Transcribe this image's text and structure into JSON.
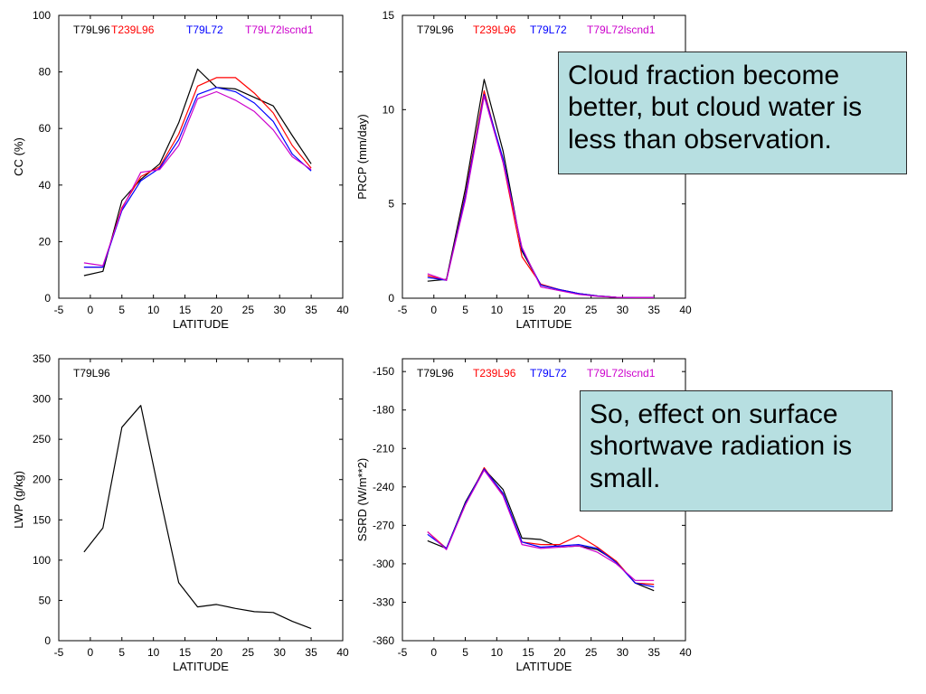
{
  "colors": {
    "T79L96": "#000000",
    "T239L96": "#ff0000",
    "T79L72": "#0000ff",
    "T79L72lscnd1": "#cc00cc",
    "note_bg": "#b7dfe1"
  },
  "notes": {
    "cloud": "Cloud fraction become better, but cloud water is less than observation.",
    "ssrd": "So, effect on surface shortwave radiation is small."
  },
  "chart_data": [
    {
      "type": "line",
      "xlabel": "LATITUDE",
      "ylabel": "CC (%)",
      "xlim": [
        -5,
        40
      ],
      "xticks": [
        -5,
        0,
        5,
        10,
        15,
        20,
        25,
        30,
        35,
        40
      ],
      "ylim": [
        0,
        100
      ],
      "yticks": [
        0,
        20,
        40,
        60,
        80,
        100
      ],
      "legend": [
        "T79L96",
        "T239L96",
        "T79L72",
        "T79L72lscnd1"
      ],
      "x": [
        -1,
        2,
        5,
        8,
        11,
        14,
        17,
        20,
        23,
        26,
        29,
        32,
        35
      ],
      "series": [
        {
          "name": "T79L96",
          "values": [
            8,
            9.5,
            34.5,
            42,
            47.5,
            62,
            81,
            74.5,
            74,
            71,
            68,
            57.5,
            47.5
          ]
        },
        {
          "name": "T239L96",
          "values": [
            11,
            11,
            32,
            43,
            46.5,
            58,
            75,
            78,
            78,
            72.5,
            65.5,
            54,
            46
          ]
        },
        {
          "name": "T79L72",
          "values": [
            11,
            11,
            31,
            41.5,
            46,
            56,
            72,
            74.5,
            73,
            69,
            62.5,
            51,
            45
          ]
        },
        {
          "name": "T79L72lscnd1",
          "values": [
            12.5,
            11.5,
            31.5,
            44.5,
            45.5,
            54,
            70.5,
            73,
            70,
            66,
            59.5,
            50,
            45.5
          ]
        }
      ]
    },
    {
      "type": "line",
      "xlabel": "LATITUDE",
      "ylabel": "PRCP (mm/day)",
      "xlim": [
        -5,
        40
      ],
      "xticks": [
        -5,
        0,
        5,
        10,
        15,
        20,
        25,
        30,
        35,
        40
      ],
      "ylim": [
        0,
        15
      ],
      "yticks": [
        0,
        5,
        10,
        15
      ],
      "legend": [
        "T79L96",
        "T239L96",
        "T79L72",
        "T79L72lscnd1"
      ],
      "x": [
        -1,
        2,
        5,
        8,
        11,
        14,
        17,
        20,
        23,
        26,
        29,
        32,
        35
      ],
      "series": [
        {
          "name": "T79L96",
          "values": [
            0.9,
            1.0,
            5.8,
            11.6,
            7.8,
            2.5,
            0.7,
            0.45,
            0.25,
            0.12,
            0.05,
            0.03,
            0.03
          ]
        },
        {
          "name": "T239L96",
          "values": [
            1.2,
            0.95,
            5.5,
            11.0,
            7.2,
            2.2,
            0.75,
            0.45,
            0.25,
            0.12,
            0.05,
            0.03,
            0.03
          ]
        },
        {
          "name": "T79L72",
          "values": [
            1.1,
            0.95,
            5.4,
            10.8,
            7.4,
            2.6,
            0.7,
            0.45,
            0.25,
            0.12,
            0.05,
            0.03,
            0.03
          ]
        },
        {
          "name": "T79L72lscnd1",
          "values": [
            1.3,
            0.95,
            5.2,
            10.7,
            7.2,
            2.7,
            0.6,
            0.4,
            0.2,
            0.1,
            0.05,
            0.03,
            0.03
          ]
        }
      ]
    },
    {
      "type": "line",
      "xlabel": "LATITUDE",
      "ylabel": "LWP (g/kg)",
      "xlim": [
        -5,
        40
      ],
      "xticks": [
        -5,
        0,
        5,
        10,
        15,
        20,
        25,
        30,
        35,
        40
      ],
      "ylim": [
        0,
        350
      ],
      "yticks": [
        0,
        50,
        100,
        150,
        200,
        250,
        300,
        350
      ],
      "legend": [
        "T79L96"
      ],
      "x": [
        -1,
        2,
        5,
        8,
        11,
        14,
        17,
        20,
        23,
        26,
        29,
        32,
        35
      ],
      "series": [
        {
          "name": "T79L96",
          "values": [
            110,
            140,
            265,
            292,
            180,
            72,
            42,
            45,
            40,
            36,
            35,
            24,
            15
          ]
        }
      ]
    },
    {
      "type": "line",
      "xlabel": "LATITUDE",
      "ylabel": "SSRD (W/m**2)",
      "xlim": [
        -5,
        40
      ],
      "xticks": [
        -5,
        0,
        5,
        10,
        15,
        20,
        25,
        30,
        35,
        40
      ],
      "ylim": [
        -360,
        -140
      ],
      "yticks": [
        -360,
        -330,
        -300,
        -270,
        -240,
        -210,
        -180,
        -150
      ],
      "legend": [
        "T79L96",
        "T239L96",
        "T79L72",
        "T79L72lscnd1"
      ],
      "x": [
        -1,
        2,
        5,
        8,
        11,
        14,
        17,
        20,
        23,
        26,
        29,
        32,
        35
      ],
      "series": [
        {
          "name": "T79L96",
          "values": [
            -282,
            -288,
            -252,
            -226,
            -242,
            -280,
            -281,
            -287,
            -286,
            -289,
            -298,
            -315,
            -321
          ]
        },
        {
          "name": "T239L96",
          "values": [
            -275,
            -288,
            -254,
            -225,
            -246,
            -283,
            -285,
            -285,
            -278,
            -287,
            -298,
            -315,
            -316
          ]
        },
        {
          "name": "T79L72",
          "values": [
            -277,
            -288,
            -253,
            -226,
            -245,
            -283,
            -287,
            -286,
            -285,
            -288,
            -299,
            -315,
            -318
          ]
        },
        {
          "name": "T79L72lscnd1",
          "values": [
            -275,
            -289,
            -254,
            -227,
            -247,
            -285,
            -288,
            -287,
            -286,
            -291,
            -300,
            -313,
            -313
          ]
        }
      ]
    }
  ]
}
